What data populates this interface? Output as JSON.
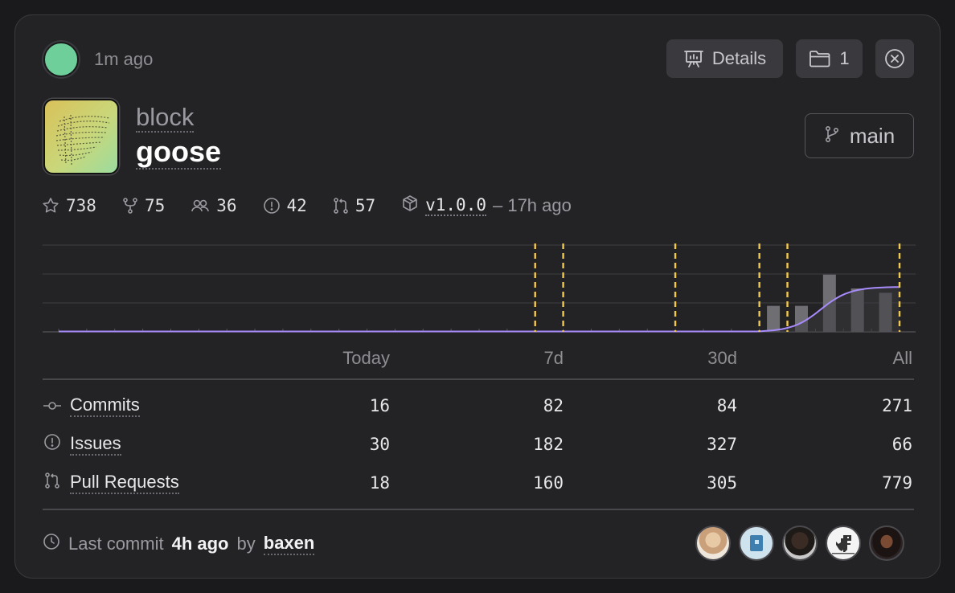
{
  "header": {
    "time_ago": "1m ago",
    "details_label": "Details",
    "folder_count": "1",
    "status_color": "#6fcf9b"
  },
  "repo": {
    "owner": "block",
    "name": "goose",
    "branch": "main"
  },
  "stats": {
    "stars": "738",
    "forks": "75",
    "contributors": "36",
    "issues": "42",
    "pull_requests": "57",
    "release_tag": "v1.0.0",
    "release_ago": "– 17h ago"
  },
  "activity_chart": {
    "type": "bar",
    "bars": [
      0.3,
      0.3,
      0.66,
      0.5,
      0.45
    ],
    "markers": [
      17,
      18,
      22,
      25,
      26,
      30
    ],
    "accent": "#f2c94c",
    "line_color": "#a78bfa"
  },
  "table": {
    "columns": [
      "Today",
      "7d",
      "30d",
      "All"
    ],
    "rows": [
      {
        "label": "Commits",
        "values": [
          "16",
          "82",
          "84",
          "271"
        ]
      },
      {
        "label": "Issues",
        "values": [
          "30",
          "182",
          "327",
          "66"
        ]
      },
      {
        "label": "Pull Requests",
        "values": [
          "18",
          "160",
          "305",
          "779"
        ]
      }
    ]
  },
  "footer": {
    "prefix": "Last commit",
    "time": "4h ago",
    "by": "by",
    "author": "baxen"
  },
  "icons": {
    "details": "presentation-icon",
    "folder": "folder-icon",
    "close": "close-circle-icon",
    "branch": "git-branch-icon",
    "star": "star-icon",
    "fork": "fork-icon",
    "people": "people-icon",
    "issue": "issue-icon",
    "pr": "pull-request-icon",
    "release": "package-icon",
    "commit": "commit-icon",
    "clock": "clock-icon"
  }
}
